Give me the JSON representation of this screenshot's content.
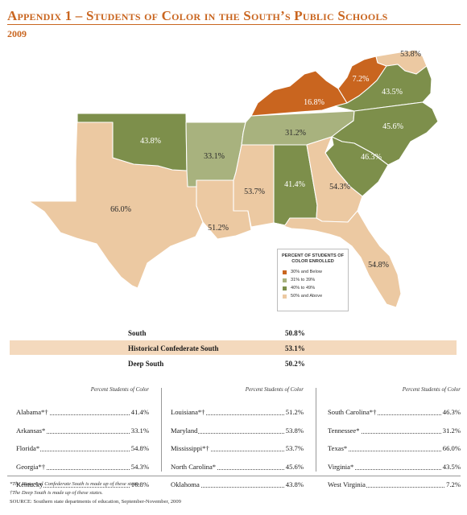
{
  "header": {
    "title": "Appendix 1 – Students of Color in the South’s Public Schools",
    "year": "2009"
  },
  "map": {
    "states": [
      {
        "id": "TX",
        "name": "Texas",
        "label": "66.0%",
        "category": "50plus"
      },
      {
        "id": "OK",
        "name": "Oklahoma",
        "label": "43.8%",
        "category": "40to49"
      },
      {
        "id": "AR",
        "name": "Arkansas",
        "label": "33.1%",
        "category": "31to39"
      },
      {
        "id": "LA",
        "name": "Louisiana",
        "label": "51.2%",
        "category": "50plus"
      },
      {
        "id": "MS",
        "name": "Mississippi",
        "label": "53.7%",
        "category": "50plus"
      },
      {
        "id": "AL",
        "name": "Alabama",
        "label": "41.4%",
        "category": "40to49"
      },
      {
        "id": "GA",
        "name": "Georgia",
        "label": "54.3%",
        "category": "50plus"
      },
      {
        "id": "FL",
        "name": "Florida",
        "label": "54.8%",
        "category": "50plus"
      },
      {
        "id": "SC",
        "name": "South Carolina",
        "label": "46.3%",
        "category": "40to49"
      },
      {
        "id": "NC",
        "name": "North Carolina",
        "label": "45.6%",
        "category": "40to49"
      },
      {
        "id": "TN",
        "name": "Tennessee",
        "label": "31.2%",
        "category": "31to39"
      },
      {
        "id": "KY",
        "name": "Kentucky",
        "label": "16.8%",
        "category": "30below"
      },
      {
        "id": "WV",
        "name": "West Virginia",
        "label": "7.2%",
        "category": "30below"
      },
      {
        "id": "VA",
        "name": "Virginia",
        "label": "43.5%",
        "category": "40to49"
      },
      {
        "id": "MD",
        "name": "Maryland",
        "label": "53.8%",
        "category": "50plus"
      }
    ],
    "colors": {
      "30below": "#c9651f",
      "31to39": "#a8b27e",
      "40to49": "#7d8f4b",
      "50plus": "#ecc9a2"
    },
    "legend": {
      "title": "PERCENT OF STUDENTS OF COLOR ENROLLED",
      "items": [
        {
          "key": "30below",
          "label": "30% and Below"
        },
        {
          "key": "31to39",
          "label": "31% to 39%"
        },
        {
          "key": "40to49",
          "label": "40% to 49%"
        },
        {
          "key": "50plus",
          "label": "50% and Above"
        }
      ]
    }
  },
  "summary": [
    {
      "label": "South",
      "value": "50.8%"
    },
    {
      "label": "Historical Confederate South",
      "value": "53.1%"
    },
    {
      "label": "Deep South",
      "value": "50.2%"
    }
  ],
  "table": {
    "col_header": "Percent Students of Color",
    "columns": [
      [
        {
          "name": "Alabama*†",
          "value": "41.4%"
        },
        {
          "name": "Arkansas*",
          "value": "33.1%"
        },
        {
          "name": "Florida*",
          "value": "54.8%"
        },
        {
          "name": "Georgia*†",
          "value": "54.3%"
        },
        {
          "name": "Kentucky",
          "value": "16.8%"
        }
      ],
      [
        {
          "name": "Louisiana*†",
          "value": "51.2%"
        },
        {
          "name": "Maryland",
          "value": "53.8%"
        },
        {
          "name": "Mississippi*†",
          "value": "53.7%"
        },
        {
          "name": "North Carolina*",
          "value": "45.6%"
        },
        {
          "name": "Oklahoma",
          "value": "43.8%"
        }
      ],
      [
        {
          "name": "South Carolina*†",
          "value": "46.3%"
        },
        {
          "name": "Tennessee*",
          "value": "31.2%"
        },
        {
          "name": "Texas*",
          "value": "66.0%"
        },
        {
          "name": "Virginia*",
          "value": "43.5%"
        },
        {
          "name": "West Virginia",
          "value": "7.2%"
        }
      ]
    ]
  },
  "footnotes": [
    "*The Historical Confederate South is made up of these states.",
    "†The Deep South is made up of these states.",
    "SOURCE: Southern state departments of education, September-November, 2009"
  ]
}
